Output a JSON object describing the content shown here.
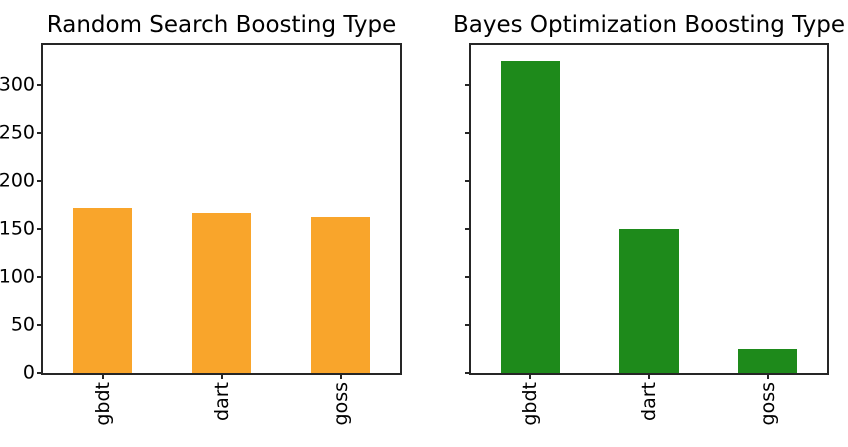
{
  "figure": {
    "background": "#ffffff",
    "text_color": "#000000",
    "axis_color": "#262626"
  },
  "chart_data": [
    {
      "type": "bar",
      "title": "Random Search Boosting Type",
      "categories": [
        "gbdt",
        "dart",
        "goss"
      ],
      "values": [
        172,
        166,
        162
      ],
      "bar_color": "#F9A52B",
      "ylim": [
        0,
        341.25
      ],
      "yticks": [
        0,
        50,
        100,
        150,
        200,
        250,
        300
      ],
      "ytick_labels": [
        "0",
        "50",
        "100",
        "150",
        "200",
        "250",
        "300"
      ],
      "show_ytick_labels": true,
      "xlabel": "",
      "ylabel": "",
      "grid": false,
      "legend": null,
      "bar_width_fraction": 0.5,
      "xtick_rotation": 90
    },
    {
      "type": "bar",
      "title": "Bayes Optimization Boosting Type",
      "categories": [
        "gbdt",
        "dart",
        "goss"
      ],
      "values": [
        325,
        150,
        25
      ],
      "bar_color": "#1E8A1B",
      "ylim": [
        0,
        341.25
      ],
      "yticks": [
        0,
        50,
        100,
        150,
        200,
        250,
        300
      ],
      "ytick_labels": [
        "0",
        "50",
        "100",
        "150",
        "200",
        "250",
        "300"
      ],
      "show_ytick_labels": false,
      "xlabel": "",
      "ylabel": "",
      "grid": false,
      "legend": null,
      "bar_width_fraction": 0.5,
      "xtick_rotation": 90
    }
  ]
}
